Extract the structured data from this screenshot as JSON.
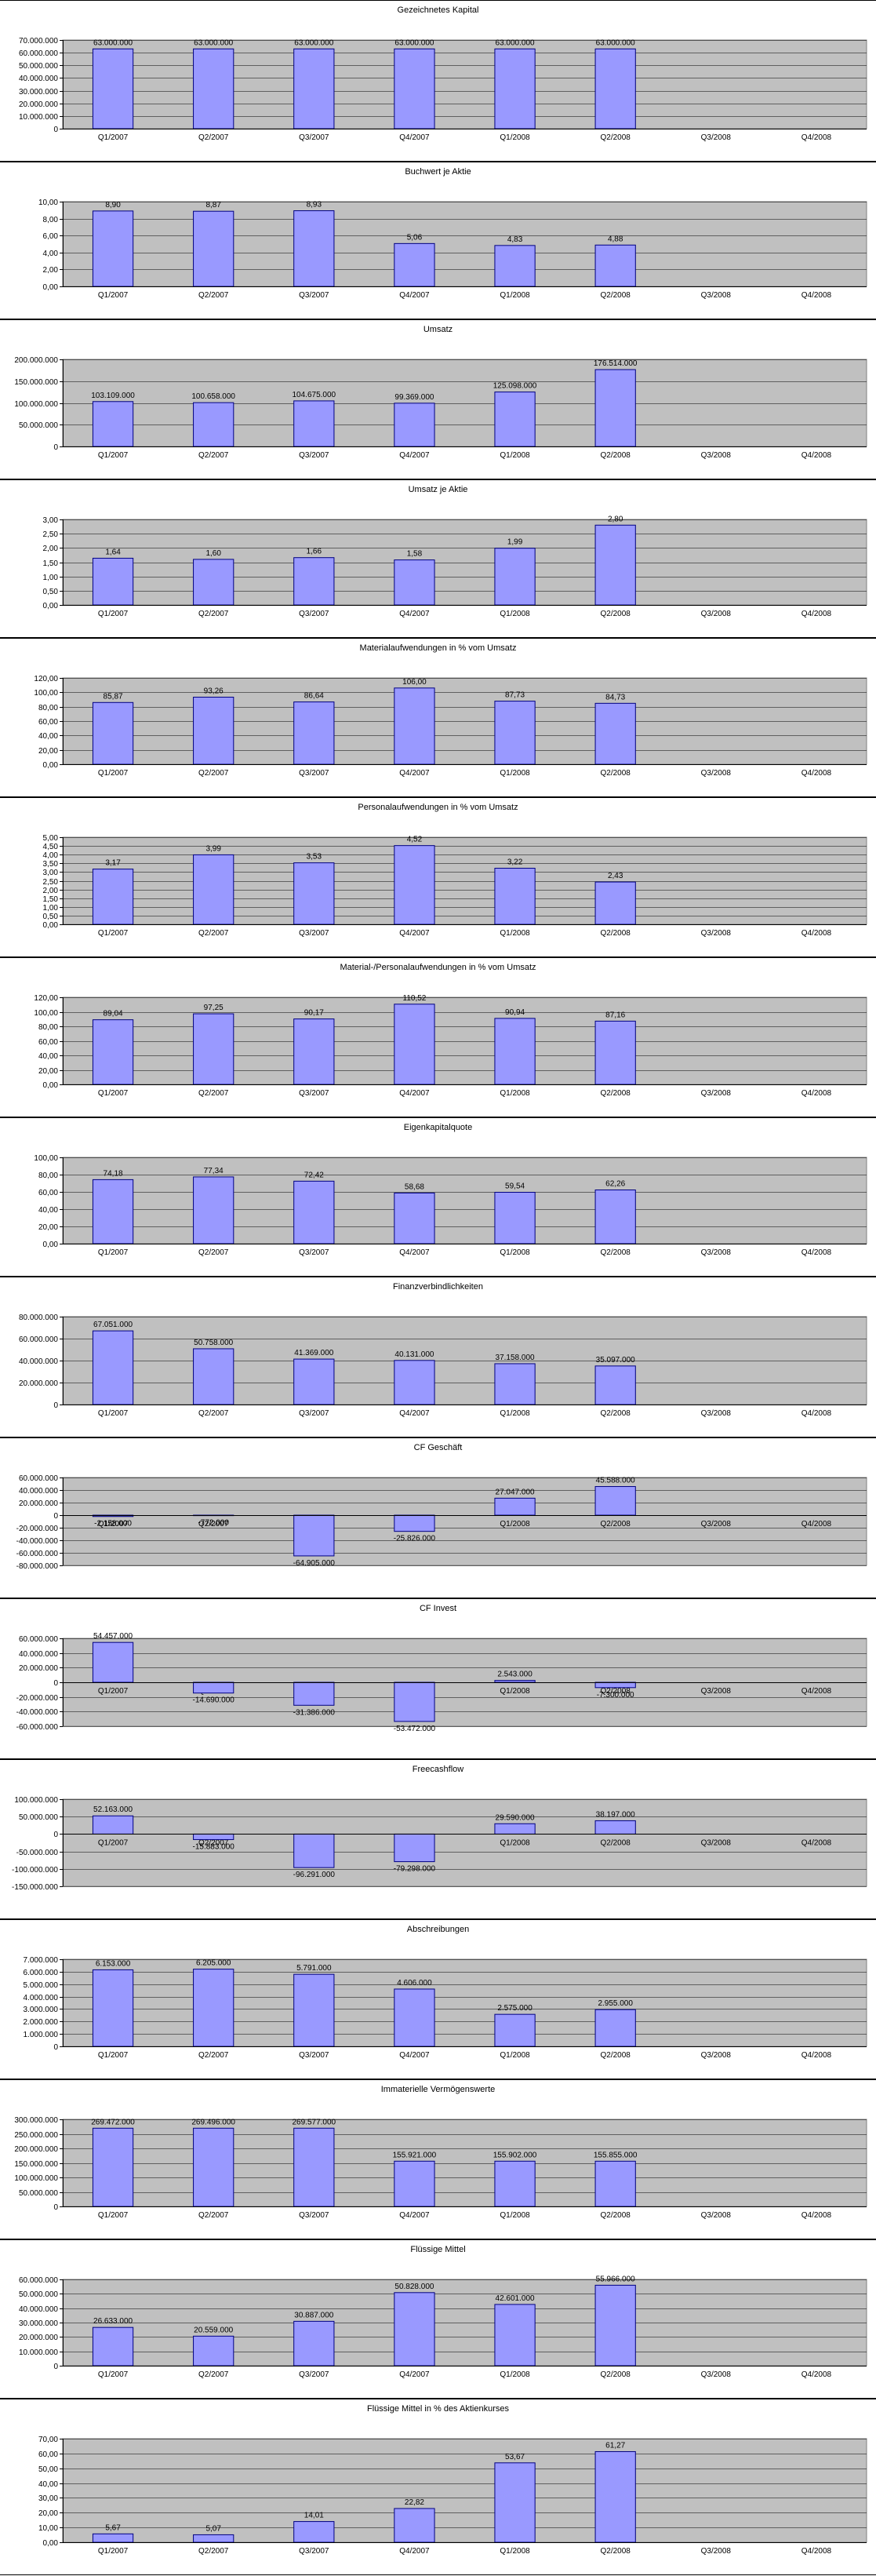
{
  "colors": {
    "bar_fill": "#9999ff",
    "bar_stroke": "#000080",
    "plot_bg": "#c0c0c0",
    "grid": "#000000"
  },
  "chart_data": [
    {
      "type": "bar",
      "title": "Gezeichnetes Kapital",
      "categories": [
        "Q1/2007",
        "Q2/2007",
        "Q3/2007",
        "Q4/2007",
        "Q1/2008",
        "Q2/2008",
        "Q3/2008",
        "Q4/2008"
      ],
      "values": [
        63000000,
        63000000,
        63000000,
        63000000,
        63000000,
        63000000,
        null,
        null
      ],
      "labels": [
        "63.000.000",
        "63.000.000",
        "63.000.000",
        "63.000.000",
        "63.000.000",
        "63.000.000",
        "",
        ""
      ],
      "ylim": [
        0,
        70000000
      ],
      "yticks": [
        "0",
        "10.000.000",
        "20.000.000",
        "30.000.000",
        "40.000.000",
        "50.000.000",
        "60.000.000",
        "70.000.000"
      ]
    },
    {
      "type": "bar",
      "title": "Buchwert je Aktie",
      "categories": [
        "Q1/2007",
        "Q2/2007",
        "Q3/2007",
        "Q4/2007",
        "Q1/2008",
        "Q2/2008",
        "Q3/2008",
        "Q4/2008"
      ],
      "values": [
        8.9,
        8.87,
        8.93,
        5.06,
        4.83,
        4.88,
        null,
        null
      ],
      "labels": [
        "8,90",
        "8,87",
        "8,93",
        "5,06",
        "4,83",
        "4,88",
        "",
        ""
      ],
      "ylim": [
        0,
        10
      ],
      "yticks": [
        "0,00",
        "2,00",
        "4,00",
        "6,00",
        "8,00",
        "10,00"
      ]
    },
    {
      "type": "bar",
      "title": "Umsatz",
      "categories": [
        "Q1/2007",
        "Q2/2007",
        "Q3/2007",
        "Q4/2007",
        "Q1/2008",
        "Q2/2008",
        "Q3/2008",
        "Q4/2008"
      ],
      "values": [
        103109000,
        100658000,
        104675000,
        99369000,
        125098000,
        176514000,
        null,
        null
      ],
      "labels": [
        "103.109.000",
        "100.658.000",
        "104.675.000",
        "99.369.000",
        "125.098.000",
        "176.514.000",
        "",
        ""
      ],
      "ylim": [
        0,
        200000000
      ],
      "yticks": [
        "0",
        "50.000.000",
        "100.000.000",
        "150.000.000",
        "200.000.000"
      ]
    },
    {
      "type": "bar",
      "title": "Umsatz je Aktie",
      "categories": [
        "Q1/2007",
        "Q2/2007",
        "Q3/2007",
        "Q4/2007",
        "Q1/2008",
        "Q2/2008",
        "Q3/2008",
        "Q4/2008"
      ],
      "values": [
        1.64,
        1.6,
        1.66,
        1.58,
        1.99,
        2.8,
        null,
        null
      ],
      "labels": [
        "1,64",
        "1,60",
        "1,66",
        "1,58",
        "1,99",
        "2,80",
        "",
        ""
      ],
      "ylim": [
        0,
        3
      ],
      "yticks": [
        "0,00",
        "0,50",
        "1,00",
        "1,50",
        "2,00",
        "2,50",
        "3,00"
      ]
    },
    {
      "type": "bar",
      "title": "Materialaufwendungen in % vom Umsatz",
      "categories": [
        "Q1/2007",
        "Q2/2007",
        "Q3/2007",
        "Q4/2007",
        "Q1/2008",
        "Q2/2008",
        "Q3/2008",
        "Q4/2008"
      ],
      "values": [
        85.87,
        93.26,
        86.64,
        106.0,
        87.73,
        84.73,
        null,
        null
      ],
      "labels": [
        "85,87",
        "93,26",
        "86,64",
        "106,00",
        "87,73",
        "84,73",
        "",
        ""
      ],
      "ylim": [
        0,
        120
      ],
      "yticks": [
        "0,00",
        "20,00",
        "40,00",
        "60,00",
        "80,00",
        "100,00",
        "120,00"
      ]
    },
    {
      "type": "bar",
      "title": "Personalaufwendungen in % vom Umsatz",
      "categories": [
        "Q1/2007",
        "Q2/2007",
        "Q3/2007",
        "Q4/2007",
        "Q1/2008",
        "Q2/2008",
        "Q3/2008",
        "Q4/2008"
      ],
      "values": [
        3.17,
        3.99,
        3.53,
        4.52,
        3.22,
        2.43,
        null,
        null
      ],
      "labels": [
        "3,17",
        "3,99",
        "3,53",
        "4,52",
        "3,22",
        "2,43",
        "",
        ""
      ],
      "ylim": [
        0,
        5
      ],
      "yticks": [
        "0,00",
        "0,50",
        "1,00",
        "1,50",
        "2,00",
        "2,50",
        "3,00",
        "3,50",
        "4,00",
        "4,50",
        "5,00"
      ]
    },
    {
      "type": "bar",
      "title": "Material-/Personalaufwendungen in % vom Umsatz",
      "categories": [
        "Q1/2007",
        "Q2/2007",
        "Q3/2007",
        "Q4/2007",
        "Q1/2008",
        "Q2/2008",
        "Q3/2008",
        "Q4/2008"
      ],
      "values": [
        89.04,
        97.25,
        90.17,
        110.52,
        90.94,
        87.16,
        null,
        null
      ],
      "labels": [
        "89,04",
        "97,25",
        "90,17",
        "110,52",
        "90,94",
        "87,16",
        "",
        ""
      ],
      "ylim": [
        0,
        120
      ],
      "yticks": [
        "0,00",
        "20,00",
        "40,00",
        "60,00",
        "80,00",
        "100,00",
        "120,00"
      ]
    },
    {
      "type": "bar",
      "title": "Eigenkapitalquote",
      "categories": [
        "Q1/2007",
        "Q2/2007",
        "Q3/2007",
        "Q4/2007",
        "Q1/2008",
        "Q2/2008",
        "Q3/2008",
        "Q4/2008"
      ],
      "values": [
        74.18,
        77.34,
        72.42,
        58.68,
        59.54,
        62.26,
        null,
        null
      ],
      "labels": [
        "74,18",
        "77,34",
        "72,42",
        "58,68",
        "59,54",
        "62,26",
        "",
        ""
      ],
      "ylim": [
        0,
        100
      ],
      "yticks": [
        "0,00",
        "20,00",
        "40,00",
        "60,00",
        "80,00",
        "100,00"
      ]
    },
    {
      "type": "bar",
      "title": "Finanzverbindlichkeiten",
      "categories": [
        "Q1/2007",
        "Q2/2007",
        "Q3/2007",
        "Q4/2007",
        "Q1/2008",
        "Q2/2008",
        "Q3/2008",
        "Q4/2008"
      ],
      "values": [
        67051000,
        50758000,
        41369000,
        40131000,
        37158000,
        35097000,
        null,
        null
      ],
      "labels": [
        "67.051.000",
        "50.758.000",
        "41.369.000",
        "40.131.000",
        "37.158.000",
        "35.097.000",
        "",
        ""
      ],
      "ylim": [
        0,
        80000000
      ],
      "yticks": [
        "0",
        "20.000.000",
        "40.000.000",
        "60.000.000",
        "80.000.000"
      ]
    },
    {
      "type": "bar",
      "title": "CF Geschäft",
      "categories": [
        "Q1/2007",
        "Q2/2007",
        "Q3/2007",
        "Q4/2007",
        "Q1/2008",
        "Q2/2008",
        "Q3/2008",
        "Q4/2008"
      ],
      "values": [
        -2158000,
        -772000,
        -64905000,
        -25826000,
        27047000,
        45588000,
        null,
        null
      ],
      "labels": [
        "-2.158.000",
        "-772.000",
        "-64.905.000",
        "-25.826.000",
        "27.047.000",
        "45.588.000",
        "",
        ""
      ],
      "ylim": [
        -80000000,
        60000000
      ],
      "yticks": [
        "-80.000.000",
        "-60.000.000",
        "-40.000.000",
        "-20.000.000",
        "0",
        "20.000.000",
        "40.000.000",
        "60.000.000"
      ]
    },
    {
      "type": "bar",
      "title": "CF Invest",
      "categories": [
        "Q1/2007",
        "Q2/2007",
        "Q3/2007",
        "Q4/2007",
        "Q1/2008",
        "Q2/2008",
        "Q3/2008",
        "Q4/2008"
      ],
      "values": [
        54457000,
        -14690000,
        -31386000,
        -53472000,
        2543000,
        -7300000,
        null,
        null
      ],
      "labels": [
        "54.457.000",
        "-14.690.000",
        "-31.386.000",
        "-53.472.000",
        "2.543.000",
        "-7.300.000",
        "",
        ""
      ],
      "ylim": [
        -60000000,
        60000000
      ],
      "yticks": [
        "-60.000.000",
        "-40.000.000",
        "-20.000.000",
        "0",
        "20.000.000",
        "40.000.000",
        "60.000.000"
      ]
    },
    {
      "type": "bar",
      "title": "Freecashflow",
      "categories": [
        "Q1/2007",
        "Q2/2007",
        "Q3/2007",
        "Q4/2007",
        "Q1/2008",
        "Q2/2008",
        "Q3/2008",
        "Q4/2008"
      ],
      "values": [
        52163000,
        -15883000,
        -96291000,
        -79298000,
        29590000,
        38197000,
        null,
        null
      ],
      "labels": [
        "52.163.000",
        "-15.883.000",
        "-96.291.000",
        "-79.298.000",
        "29.590.000",
        "38.197.000",
        "",
        ""
      ],
      "ylim": [
        -150000000,
        100000000
      ],
      "yticks": [
        "-150.000.000",
        "-100.000.000",
        "-50.000.000",
        "0",
        "50.000.000",
        "100.000.000"
      ]
    },
    {
      "type": "bar",
      "title": "Abschreibungen",
      "categories": [
        "Q1/2007",
        "Q2/2007",
        "Q3/2007",
        "Q4/2007",
        "Q1/2008",
        "Q2/2008",
        "Q3/2008",
        "Q4/2008"
      ],
      "values": [
        6153000,
        6205000,
        5791000,
        4606000,
        2575000,
        2955000,
        null,
        null
      ],
      "labels": [
        "6.153.000",
        "6.205.000",
        "5.791.000",
        "4.606.000",
        "2.575.000",
        "2.955.000",
        "",
        ""
      ],
      "ylim": [
        0,
        7000000
      ],
      "yticks": [
        "0",
        "1.000.000",
        "2.000.000",
        "3.000.000",
        "4.000.000",
        "5.000.000",
        "6.000.000",
        "7.000.000"
      ]
    },
    {
      "type": "bar",
      "title": "Immaterielle Vermögenswerte",
      "categories": [
        "Q1/2007",
        "Q2/2007",
        "Q3/2007",
        "Q4/2007",
        "Q1/2008",
        "Q2/2008",
        "Q3/2008",
        "Q4/2008"
      ],
      "values": [
        269472000,
        269496000,
        269577000,
        155921000,
        155902000,
        155855000,
        null,
        null
      ],
      "labels": [
        "269.472.000",
        "269.496.000",
        "269.577.000",
        "155.921.000",
        "155.902.000",
        "155.855.000",
        "",
        ""
      ],
      "ylim": [
        0,
        300000000
      ],
      "yticks": [
        "0",
        "50.000.000",
        "100.000.000",
        "150.000.000",
        "200.000.000",
        "250.000.000",
        "300.000.000"
      ]
    },
    {
      "type": "bar",
      "title": "Flüssige Mittel",
      "categories": [
        "Q1/2007",
        "Q2/2007",
        "Q3/2007",
        "Q4/2007",
        "Q1/2008",
        "Q2/2008",
        "Q3/2008",
        "Q4/2008"
      ],
      "values": [
        26633000,
        20559000,
        30887000,
        50828000,
        42601000,
        55966000,
        null,
        null
      ],
      "labels": [
        "26.633.000",
        "20.559.000",
        "30.887.000",
        "50.828.000",
        "42.601.000",
        "55.966.000",
        "",
        ""
      ],
      "ylim": [
        0,
        60000000
      ],
      "yticks": [
        "0",
        "10.000.000",
        "20.000.000",
        "30.000.000",
        "40.000.000",
        "50.000.000",
        "60.000.000"
      ]
    },
    {
      "type": "bar",
      "title": "Flüssige Mittel in % des Aktienkurses",
      "categories": [
        "Q1/2007",
        "Q2/2007",
        "Q3/2007",
        "Q4/2007",
        "Q1/2008",
        "Q2/2008",
        "Q3/2008",
        "Q4/2008"
      ],
      "values": [
        5.67,
        5.07,
        14.01,
        22.82,
        53.67,
        61.27,
        null,
        null
      ],
      "labels": [
        "5,67",
        "5,07",
        "14,01",
        "22,82",
        "53,67",
        "61,27",
        "",
        ""
      ],
      "ylim": [
        0,
        70
      ],
      "yticks": [
        "0,00",
        "10,00",
        "20,00",
        "30,00",
        "40,00",
        "50,00",
        "60,00",
        "70,00"
      ]
    }
  ]
}
